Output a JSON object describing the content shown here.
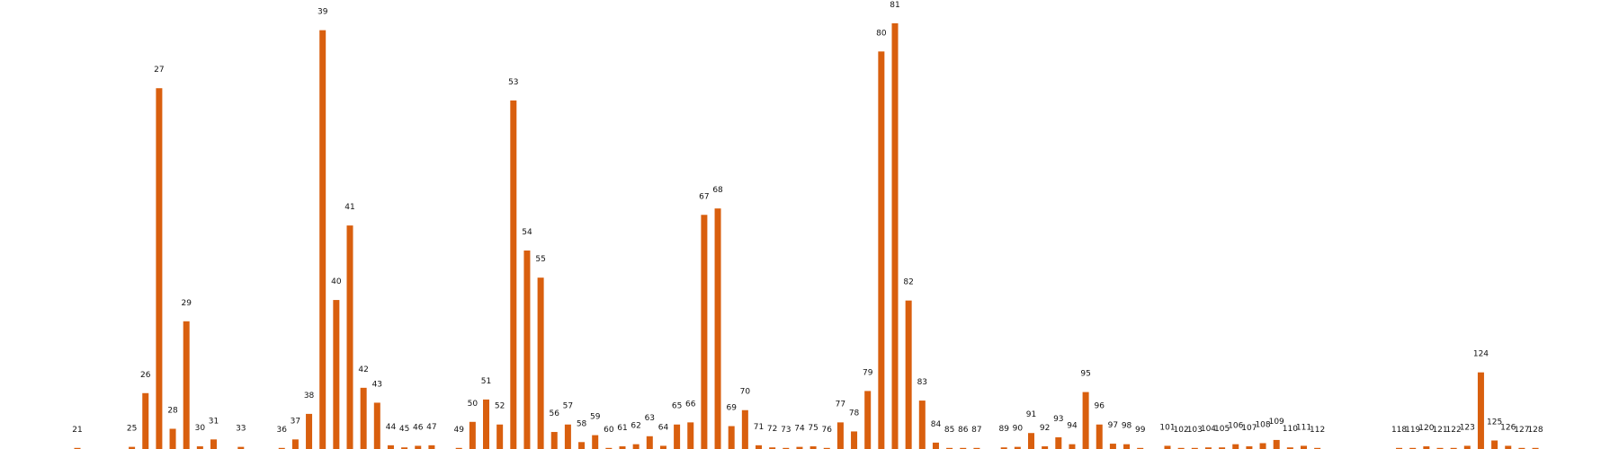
{
  "chart_data": {
    "type": "bar",
    "colors": {
      "bar": "#d95f0e",
      "label": "#111111"
    },
    "grid": false,
    "legend": "none",
    "x_range": [
      20,
      130
    ],
    "ylim": [
      0,
      84
    ],
    "categories": [
      "21",
      "25",
      "26",
      "27",
      "28",
      "29",
      "30",
      "31",
      "33",
      "36",
      "37",
      "38",
      "39",
      "40",
      "41",
      "42",
      "43",
      "44",
      "45",
      "46",
      "47",
      "49",
      "50",
      "51",
      "52",
      "53",
      "54",
      "55",
      "56",
      "57",
      "58",
      "59",
      "60",
      "61",
      "62",
      "63",
      "64",
      "65",
      "66",
      "67",
      "68",
      "69",
      "70",
      "71",
      "72",
      "73",
      "74",
      "75",
      "76",
      "77",
      "78",
      "79",
      "80",
      "81",
      "82",
      "83",
      "84",
      "85",
      "86",
      "87",
      "89",
      "90",
      "91",
      "92",
      "93",
      "94",
      "95",
      "96",
      "97",
      "98",
      "99",
      "101",
      "102",
      "103",
      "104",
      "105",
      "106",
      "107",
      "108",
      "109",
      "110",
      "111",
      "112",
      "118",
      "119",
      "120",
      "121",
      "122",
      "123",
      "124",
      "125",
      "126",
      "127",
      "128"
    ],
    "series": [
      {
        "x": [
          21,
          25,
          26,
          27,
          28,
          29,
          30,
          31,
          33,
          36,
          37,
          38,
          39,
          40,
          41,
          42,
          43,
          44,
          45,
          46,
          47,
          49,
          50,
          51,
          52,
          53,
          54,
          55,
          56,
          57,
          58,
          59,
          60,
          61,
          62,
          63,
          64,
          65,
          66,
          67,
          68,
          69,
          70,
          71,
          72,
          73,
          74,
          75,
          76,
          77,
          78,
          79,
          80,
          81,
          82,
          83,
          84,
          85,
          86,
          87,
          89,
          90,
          91,
          92,
          93,
          94,
          95,
          96,
          97,
          98,
          99,
          101,
          102,
          103,
          104,
          105,
          106,
          107,
          108,
          109,
          110,
          111,
          112,
          118,
          119,
          120,
          121,
          122,
          123,
          124,
          125,
          126,
          127,
          128
        ],
        "values": [
          0.2,
          0.4,
          10.5,
          67.8,
          3.8,
          24,
          0.5,
          1.8,
          0.4,
          0.2,
          1.8,
          6.6,
          78.7,
          28,
          42,
          11.5,
          8.7,
          0.7,
          0.3,
          0.6,
          0.7,
          0.2,
          5.1,
          9.3,
          4.6,
          65.5,
          37.3,
          32.2,
          3.2,
          4.6,
          1.3,
          2.6,
          0.2,
          0.5,
          0.9,
          2.4,
          0.6,
          4.6,
          5,
          44,
          45.2,
          4.3,
          7.3,
          0.7,
          0.3,
          0.2,
          0.4,
          0.5,
          0.2,
          5,
          3.3,
          10.9,
          74.7,
          80,
          27.9,
          9.1,
          1.2,
          0.2,
          0.2,
          0.2,
          0.3,
          0.4,
          3,
          0.5,
          2.2,
          0.9,
          10.7,
          4.6,
          1,
          0.9,
          0.2,
          0.6,
          0.2,
          0.2,
          0.3,
          0.3,
          0.9,
          0.5,
          1.1,
          1.7,
          0.3,
          0.6,
          0.1,
          0.1,
          0.2,
          0.5,
          0.2,
          0.2,
          0.6,
          14.4,
          1.6,
          0.6,
          0.1,
          0.2
        ]
      }
    ]
  }
}
